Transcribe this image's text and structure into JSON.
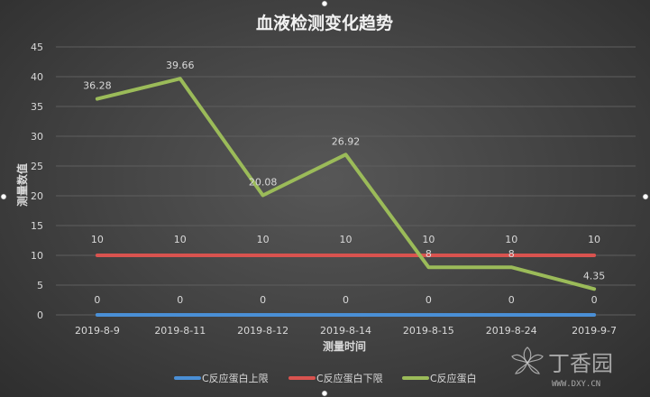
{
  "chart_data": {
    "type": "line",
    "title": "血液检测变化趋势",
    "xlabel": "测量时间",
    "ylabel": "测量数值",
    "ylim": [
      0,
      45
    ],
    "yticks": [
      0,
      5,
      10,
      15,
      20,
      25,
      30,
      35,
      40,
      45
    ],
    "grid": true,
    "legend_position": "bottom",
    "categories": [
      "2019-8-9",
      "2019-8-11",
      "2019-8-12",
      "2019-8-14",
      "2019-8-15",
      "2019-8-24",
      "2019-9-7"
    ],
    "series": [
      {
        "name": "C反应蛋白上限",
        "color": "#4a8fd6",
        "values": [
          0,
          0,
          0,
          0,
          0,
          0,
          0
        ],
        "labels": [
          "0",
          "0",
          "0",
          "0",
          "0",
          "0",
          "0"
        ]
      },
      {
        "name": "C反应蛋白下限",
        "color": "#d9534f",
        "values": [
          10,
          10,
          10,
          10,
          10,
          10,
          10
        ],
        "labels": [
          "10",
          "10",
          "10",
          "10",
          "10",
          "10",
          "10"
        ]
      },
      {
        "name": "C反应蛋白",
        "color": "#9bbb59",
        "values": [
          36.28,
          39.66,
          20.08,
          26.92,
          8,
          8,
          4.35
        ],
        "labels": [
          "36.28",
          "39.66",
          "20.08",
          "26.92",
          "8",
          "8",
          "4.35"
        ]
      }
    ]
  },
  "watermark": {
    "text": "丁香园",
    "url": "WWW.DXY.CN"
  }
}
